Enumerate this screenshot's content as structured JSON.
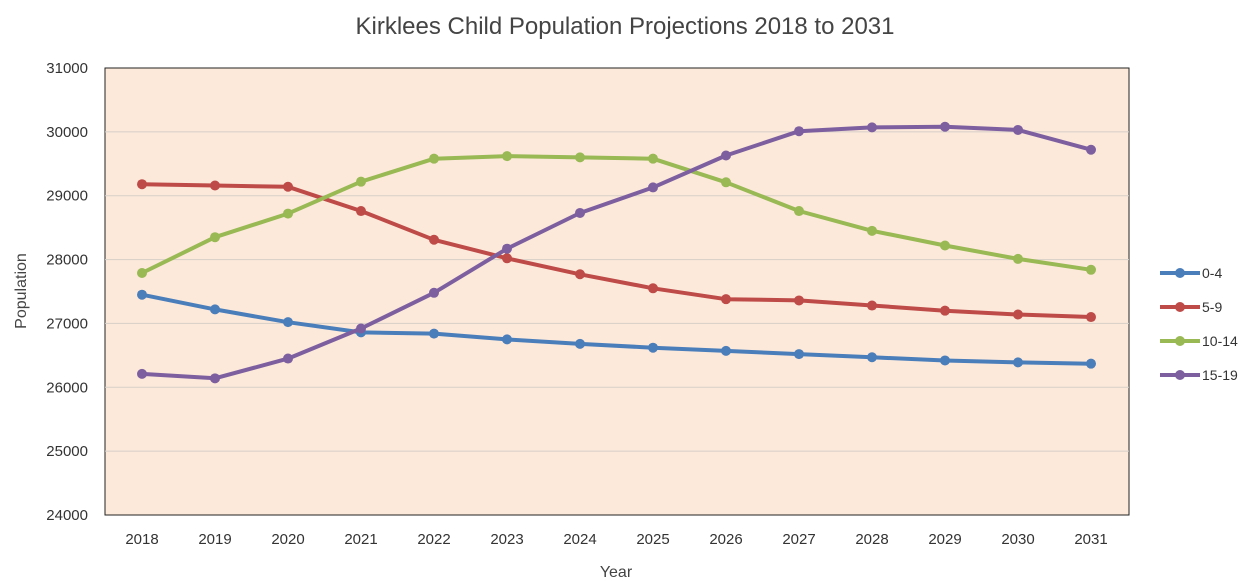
{
  "chart_data": {
    "type": "line",
    "title": "Kirklees Child Population Projections 2018 to 2031",
    "xlabel": "Year",
    "ylabel": "Population",
    "ylim": [
      24000,
      31000
    ],
    "yticks": [
      24000,
      25000,
      26000,
      27000,
      28000,
      29000,
      30000,
      31000
    ],
    "grid": true,
    "legend_position": "right",
    "plot_background": "#fde9da",
    "x": [
      "2018",
      "2019",
      "2020",
      "2021",
      "2022",
      "2023",
      "2024",
      "2025",
      "2026",
      "2027",
      "2028",
      "2029",
      "2030",
      "2031"
    ],
    "series": [
      {
        "name": "0-4",
        "color": "#4a7ebb",
        "values": [
          27450,
          27220,
          27020,
          26860,
          26840,
          26750,
          26680,
          26620,
          26570,
          26520,
          26470,
          26420,
          26390,
          26370
        ]
      },
      {
        "name": "5-9",
        "color": "#be4b48",
        "values": [
          29180,
          29160,
          29140,
          28760,
          28310,
          28020,
          27770,
          27550,
          27380,
          27360,
          27280,
          27200,
          27140,
          27100
        ]
      },
      {
        "name": "10-14",
        "color": "#98b954",
        "values": [
          27790,
          28350,
          28720,
          29220,
          29580,
          29620,
          29600,
          29580,
          29210,
          28760,
          28450,
          28220,
          28010,
          27840
        ]
      },
      {
        "name": "15-19",
        "color": "#7d5fa0",
        "values": [
          26210,
          26140,
          26450,
          26920,
          27480,
          28170,
          28730,
          29130,
          29630,
          30010,
          30070,
          30080,
          30030,
          29720
        ]
      }
    ]
  }
}
